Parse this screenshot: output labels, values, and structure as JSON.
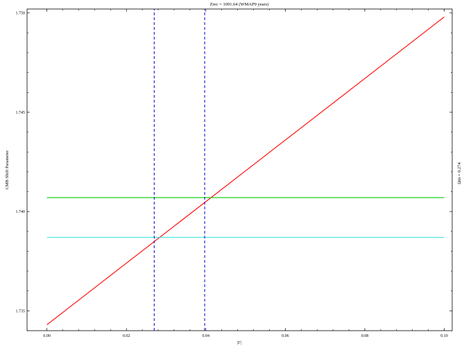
{
  "chart_data": {
    "type": "line",
    "title": "Zrec = 1091.64 (WMAP9 years)",
    "xlabel": "|Γ|",
    "ylabel": "CMB Shift Parameter",
    "right_label": "Ωm = 0.274",
    "xlim": [
      -0.005,
      0.102
    ],
    "ylim": [
      1.734,
      1.7502
    ],
    "x_ticks": [
      0.0,
      0.02,
      0.04,
      0.06,
      0.08,
      0.1
    ],
    "x_tick_labels": [
      "0.00",
      "0.02",
      "0.04",
      "0.06",
      "0.08",
      "0.10"
    ],
    "y_ticks": [
      1.735,
      1.74,
      1.745,
      1.75
    ],
    "y_tick_labels": [
      "1.735",
      "1.740",
      "1.745",
      "1.750"
    ],
    "grid": false,
    "series": [
      {
        "color": "#ff0000",
        "style": "solid",
        "x": [
          0.0,
          0.1
        ],
        "y": [
          1.7343,
          1.7498
        ]
      },
      {
        "color": "#00cc00",
        "style": "solid",
        "x": [
          0.0,
          0.1
        ],
        "y": [
          1.7407,
          1.7407
        ]
      },
      {
        "color": "#33e0e0",
        "style": "solid",
        "x": [
          0.0,
          0.1
        ],
        "y": [
          1.7387,
          1.7387
        ]
      },
      {
        "color": "#0000cc",
        "style": "dashed",
        "x": [
          0.027,
          0.027
        ],
        "y": [
          1.734,
          1.7502
        ]
      },
      {
        "color": "#0000cc",
        "style": "dashed",
        "x": [
          0.0397,
          0.0397
        ],
        "y": [
          1.734,
          1.7502
        ]
      }
    ]
  }
}
